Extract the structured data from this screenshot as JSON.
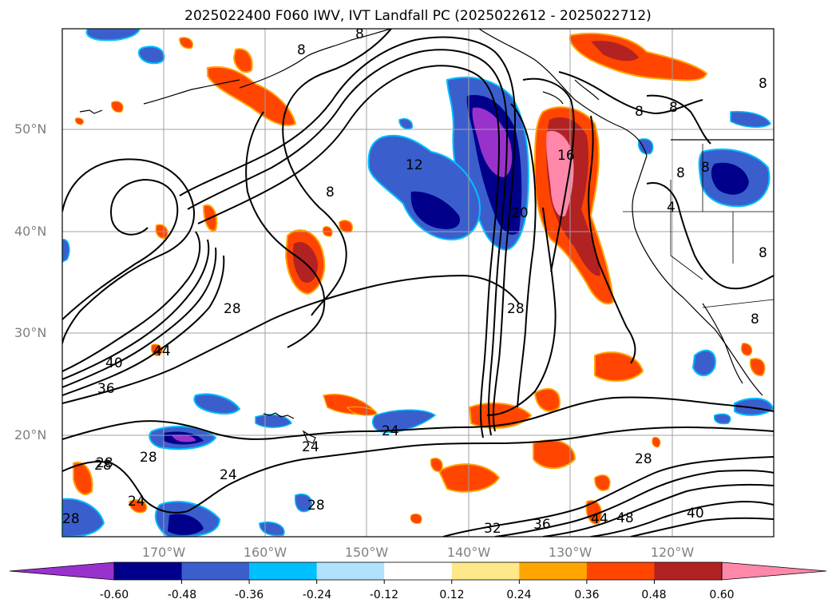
{
  "title": "2025022400 F060 IWV, IVT Landfall PC (2025022612 - 2025022712)",
  "lat_labels": [
    "50°N",
    "40°N",
    "30°N",
    "20°N"
  ],
  "lon_labels": [
    "170°W",
    "160°W",
    "150°W",
    "140°W",
    "130°W",
    "120°W"
  ],
  "colorbar": {
    "ticks": [
      "-0.60",
      "-0.48",
      "-0.36",
      "-0.24",
      "-0.12",
      "0.12",
      "0.24",
      "0.36",
      "0.48",
      "0.60"
    ],
    "colors": [
      "#9932cc",
      "#00008b",
      "#3a5fcd",
      "#00bfff",
      "#b0e2ff",
      "#ffffff",
      "#ffe88a",
      "#ffa500",
      "#ff4500",
      "#b22222",
      "#ff88aa"
    ],
    "extend": "both"
  },
  "contour_labels": [
    "8",
    "8",
    "8",
    "8",
    "8",
    "8",
    "8",
    "4",
    "8",
    "8",
    "12",
    "16",
    "20",
    "28",
    "28",
    "28",
    "40",
    "36",
    "44",
    "28",
    "28",
    "24",
    "24",
    "24",
    "28",
    "24",
    "28",
    "32",
    "36",
    "40",
    "44",
    "48",
    "28",
    "8"
  ],
  "colors": {
    "background": "#ffffff",
    "grid": "#a0a0a0",
    "contour": "#000000",
    "coast": "#000000"
  }
}
